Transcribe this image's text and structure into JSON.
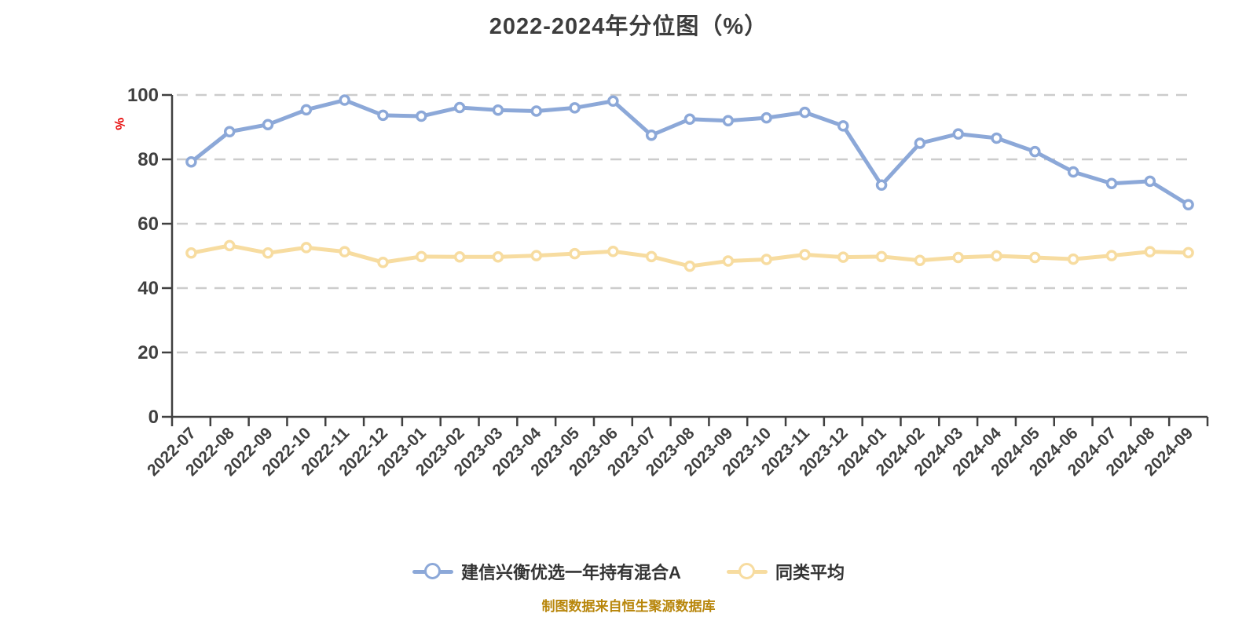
{
  "title": "2022-2024年分位图（%）",
  "y_axis_unit": "%",
  "source_note": "制图数据来自恒生聚源数据库",
  "colors": {
    "title_text": "#3d3d3d",
    "axis": "#404040",
    "axis_label": "#404040",
    "gridline": "#cccccc",
    "unit_label": "#e60000",
    "source_note": "#b8860b",
    "series_fund": "#8ca8d8",
    "series_average": "#f7dca0"
  },
  "chart_data": {
    "type": "line",
    "title": "2022-2024年分位图（%）",
    "xlabel": "",
    "ylabel": "%",
    "ylim": [
      0,
      100
    ],
    "y_ticks": [
      0,
      20,
      40,
      60,
      80,
      100
    ],
    "grid": "horizontal-dashed",
    "legend_position": "bottom",
    "categories": [
      "2022-07",
      "2022-08",
      "2022-09",
      "2022-10",
      "2022-11",
      "2022-12",
      "2023-01",
      "2023-02",
      "2023-03",
      "2023-04",
      "2023-05",
      "2023-06",
      "2023-07",
      "2023-08",
      "2023-09",
      "2023-10",
      "2023-11",
      "2023-12",
      "2024-01",
      "2024-02",
      "2024-03",
      "2024-04",
      "2024-05",
      "2024-06",
      "2024-07",
      "2024-08",
      "2024-09"
    ],
    "series": [
      {
        "name": "建信兴衡优选一年持有混合A",
        "color": "#8ca8d8",
        "values": [
          79.2,
          88.6,
          90.8,
          95.4,
          98.4,
          93.7,
          93.4,
          96.1,
          95.3,
          95.0,
          96.0,
          98.1,
          87.5,
          92.5,
          92.0,
          92.9,
          94.6,
          90.4,
          72.0,
          85.0,
          87.9,
          86.6,
          82.4,
          76.1,
          72.5,
          73.2,
          65.9
        ]
      },
      {
        "name": "同类平均",
        "color": "#f7dca0",
        "values": [
          50.9,
          53.2,
          50.9,
          52.6,
          51.3,
          48.0,
          49.8,
          49.7,
          49.7,
          50.1,
          50.7,
          51.4,
          49.8,
          46.8,
          48.4,
          48.9,
          50.4,
          49.6,
          49.8,
          48.6,
          49.5,
          50.0,
          49.5,
          49.0,
          50.1,
          51.3,
          51.0
        ]
      }
    ]
  }
}
